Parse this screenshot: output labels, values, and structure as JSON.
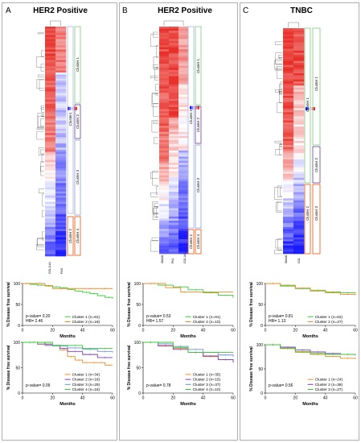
{
  "panels": [
    {
      "letter": "A",
      "title": "HER2 Positive",
      "heatmap_columns": [
        "COL11A1",
        "PNS"
      ],
      "clusters": [
        {
          "label": "Cluster 1",
          "color": "#7fc97f"
        },
        {
          "label": "Cluster 2",
          "color": "#6a3d9a"
        },
        {
          "label": "Cluster 3",
          "color": "#8da0cb"
        },
        {
          "label": "Cluster 4",
          "color": "#e6550d"
        }
      ],
      "super_clusters": [
        "Cluster1",
        "Cluster 2"
      ],
      "km_top": {
        "pvalue_text": "p-value= 0.20",
        "hr_text": "HR= 2.46",
        "legend": [
          "Cluster 1 (n=81)",
          "Cluster 2 (n=18)"
        ]
      },
      "km_bottom": {
        "pvalue_text": "p-value= 0.09",
        "legend": [
          "Cluster 1 (n=34)",
          "Cluster 2 (n=18)",
          "Cluster 3 (n=29)",
          "Cluster 4 (n=16)"
        ]
      }
    },
    {
      "letter": "B",
      "title": "HER2 Positive",
      "heatmap_columns": [
        "SMAD",
        "FN1",
        "COL1A1"
      ],
      "clusters": [
        {
          "label": "Cluster 1",
          "color": "#7fc97f"
        },
        {
          "label": "Cluster 2",
          "color": "#6a3d9a"
        },
        {
          "label": "Cluster 3",
          "color": "#8da0cb"
        },
        {
          "label": "Cluster 4",
          "color": "#e6550d"
        }
      ],
      "super_clusters": [
        "Cluster 1",
        "Cluster 2"
      ],
      "km_top": {
        "pvalue_text": "p-value= 0.53",
        "hr_text": "HR= 1.57",
        "legend": [
          "Cluster 1 (n=81)",
          "Cluster 2 (n=10)"
        ]
      },
      "km_bottom": {
        "pvalue_text": "p-value= 0.78",
        "legend": [
          "Cluster 1 (n=35)",
          "Cluster 2 (n=15)",
          "Cluster 3 (n=37)",
          "Cluster 4 (n=10)"
        ]
      }
    },
    {
      "letter": "C",
      "title": "TNBC",
      "heatmap_columns": [
        "SMAD",
        "COL"
      ],
      "clusters": [
        {
          "label": "Cluster 1",
          "color": "#7fc97f"
        },
        {
          "label": "Cluster 2",
          "color": "#6a3d9a"
        },
        {
          "label": "Cluster 3",
          "color": "#e6550d"
        }
      ],
      "super_clusters": [
        "Cluster 1",
        "Cluster 2"
      ],
      "km_top": {
        "pvalue_text": "p-value= 0.81",
        "hr_text": "HR= 1.13",
        "legend": [
          "Cluster 1 (n=62)",
          "Cluster 2 (n=27)"
        ]
      },
      "km_bottom": {
        "pvalue_text": "p-value= 0.56",
        "legend": [
          "Cluster 1 (n=24)",
          "Cluster 2 (n=38)",
          "Cluster 3 (n=27)"
        ]
      }
    }
  ],
  "km_axis": {
    "ylabel": "% Disease free survival",
    "xlabel": "Months",
    "yticks": [
      0,
      50,
      100
    ],
    "xticks": [
      0,
      20,
      40,
      60
    ]
  },
  "colors": {
    "green": "#33cc33",
    "orange": "#f08a24",
    "purple": "#7b3fb5",
    "blue": "#6a8fd6",
    "heat_red": "#e8302a",
    "heat_white": "#ffffff",
    "heat_blue": "#1a1aff"
  },
  "chart_data": [
    {
      "type": "line",
      "panel": "A",
      "xlabel": "Months",
      "ylabel": "% Disease free survival",
      "xlim": [
        0,
        60
      ],
      "ylim": [
        0,
        100
      ],
      "series": [
        {
          "name": "Cluster 1 (n=81)",
          "color": "#33cc33",
          "x": [
            0,
            5,
            10,
            15,
            20,
            25,
            30,
            35,
            40,
            45,
            50,
            55,
            60
          ],
          "y": [
            100,
            98,
            96,
            95,
            92,
            90,
            86,
            82,
            79,
            76,
            71,
            67,
            64
          ]
        },
        {
          "name": "Cluster 2 (n=18)",
          "color": "#f08a24",
          "x": [
            0,
            8,
            15,
            20,
            30,
            40,
            50,
            60
          ],
          "y": [
            100,
            100,
            94,
            88,
            88,
            88,
            88,
            88
          ]
        }
      ]
    },
    {
      "type": "line",
      "panel": "A",
      "xlabel": "Months",
      "ylabel": "% Disease free survival",
      "xlim": [
        0,
        60
      ],
      "ylim": [
        0,
        100
      ],
      "series": [
        {
          "name": "Cluster 1 (n=34)",
          "color": "#f08a24",
          "x": [
            0,
            10,
            20,
            25,
            30,
            35,
            40,
            45,
            50,
            55,
            60
          ],
          "y": [
            100,
            97,
            94,
            85,
            72,
            65,
            60,
            60,
            60,
            55,
            55
          ]
        },
        {
          "name": "Cluster 2 (n=18)",
          "color": "#7b3fb5",
          "x": [
            0,
            15,
            25,
            30,
            40,
            50,
            60
          ],
          "y": [
            100,
            94,
            88,
            82,
            76,
            70,
            70
          ]
        },
        {
          "name": "Cluster 3 (n=29)",
          "color": "#6a8fd6",
          "x": [
            0,
            10,
            20,
            30,
            40,
            50,
            60
          ],
          "y": [
            100,
            96,
            93,
            89,
            86,
            82,
            80
          ]
        },
        {
          "name": "Cluster 4 (n=16)",
          "color": "#33cc33",
          "x": [
            0,
            20,
            30,
            40,
            50,
            60
          ],
          "y": [
            100,
            94,
            94,
            88,
            88,
            88
          ]
        }
      ]
    },
    {
      "type": "line",
      "panel": "B",
      "xlabel": "Months",
      "ylabel": "% Disease free survival",
      "xlim": [
        0,
        60
      ],
      "ylim": [
        0,
        100
      ],
      "series": [
        {
          "name": "Cluster 1 (n=81)",
          "color": "#33cc33",
          "x": [
            0,
            10,
            20,
            30,
            40,
            50,
            60
          ],
          "y": [
            100,
            96,
            92,
            85,
            78,
            72,
            66
          ]
        },
        {
          "name": "Cluster 2 (n=10)",
          "color": "#f08a24",
          "x": [
            0,
            15,
            25,
            30,
            60
          ],
          "y": [
            100,
            90,
            80,
            80,
            80
          ]
        }
      ]
    },
    {
      "type": "line",
      "panel": "B",
      "xlabel": "Months",
      "ylabel": "% Disease free survival",
      "xlim": [
        0,
        60
      ],
      "ylim": [
        0,
        100
      ],
      "series": [
        {
          "name": "Cluster 1 (n=35)",
          "color": "#f08a24",
          "x": [
            0,
            10,
            20,
            30,
            40,
            50,
            60
          ],
          "y": [
            100,
            94,
            88,
            80,
            72,
            66,
            62
          ]
        },
        {
          "name": "Cluster 2 (n=15)",
          "color": "#7b3fb5",
          "x": [
            0,
            10,
            20,
            30,
            40,
            50,
            60
          ],
          "y": [
            100,
            93,
            86,
            80,
            73,
            66,
            60
          ]
        },
        {
          "name": "Cluster 3 (n=37)",
          "color": "#6a8fd6",
          "x": [
            0,
            10,
            20,
            30,
            40,
            50,
            60
          ],
          "y": [
            100,
            97,
            92,
            86,
            80,
            75,
            72
          ]
        },
        {
          "name": "Cluster 4 (n=10)",
          "color": "#33cc33",
          "x": [
            0,
            20,
            30,
            40,
            60
          ],
          "y": [
            100,
            90,
            80,
            80,
            80
          ]
        }
      ]
    },
    {
      "type": "line",
      "panel": "C",
      "xlabel": "Months",
      "ylabel": "% Disease free survival",
      "xlim": [
        0,
        60
      ],
      "ylim": [
        0,
        100
      ],
      "series": [
        {
          "name": "Cluster 1 (n=62)",
          "color": "#33cc33",
          "x": [
            0,
            10,
            20,
            30,
            40,
            50,
            60
          ],
          "y": [
            100,
            94,
            88,
            84,
            80,
            78,
            76
          ]
        },
        {
          "name": "Cluster 2 (n=27)",
          "color": "#f08a24",
          "x": [
            0,
            10,
            20,
            30,
            40,
            50,
            60
          ],
          "y": [
            100,
            96,
            89,
            82,
            78,
            74,
            72
          ]
        }
      ]
    },
    {
      "type": "line",
      "panel": "C",
      "xlabel": "Months",
      "ylabel": "% Disease free survival",
      "xlim": [
        0,
        60
      ],
      "ylim": [
        0,
        100
      ],
      "series": [
        {
          "name": "Cluster 1 (n=24)",
          "color": "#f08a24",
          "x": [
            0,
            10,
            20,
            30,
            40,
            50,
            60
          ],
          "y": [
            100,
            92,
            84,
            80,
            76,
            72,
            70
          ]
        },
        {
          "name": "Cluster 2 (n=38)",
          "color": "#7b3fb5",
          "x": [
            0,
            10,
            20,
            30,
            40,
            50,
            60
          ],
          "y": [
            100,
            95,
            89,
            85,
            82,
            80,
            78
          ]
        },
        {
          "name": "Cluster 3 (n=27)",
          "color": "#33cc33",
          "x": [
            0,
            10,
            20,
            30,
            40,
            50,
            60
          ],
          "y": [
            100,
            93,
            86,
            82,
            80,
            80,
            80
          ]
        }
      ]
    }
  ]
}
